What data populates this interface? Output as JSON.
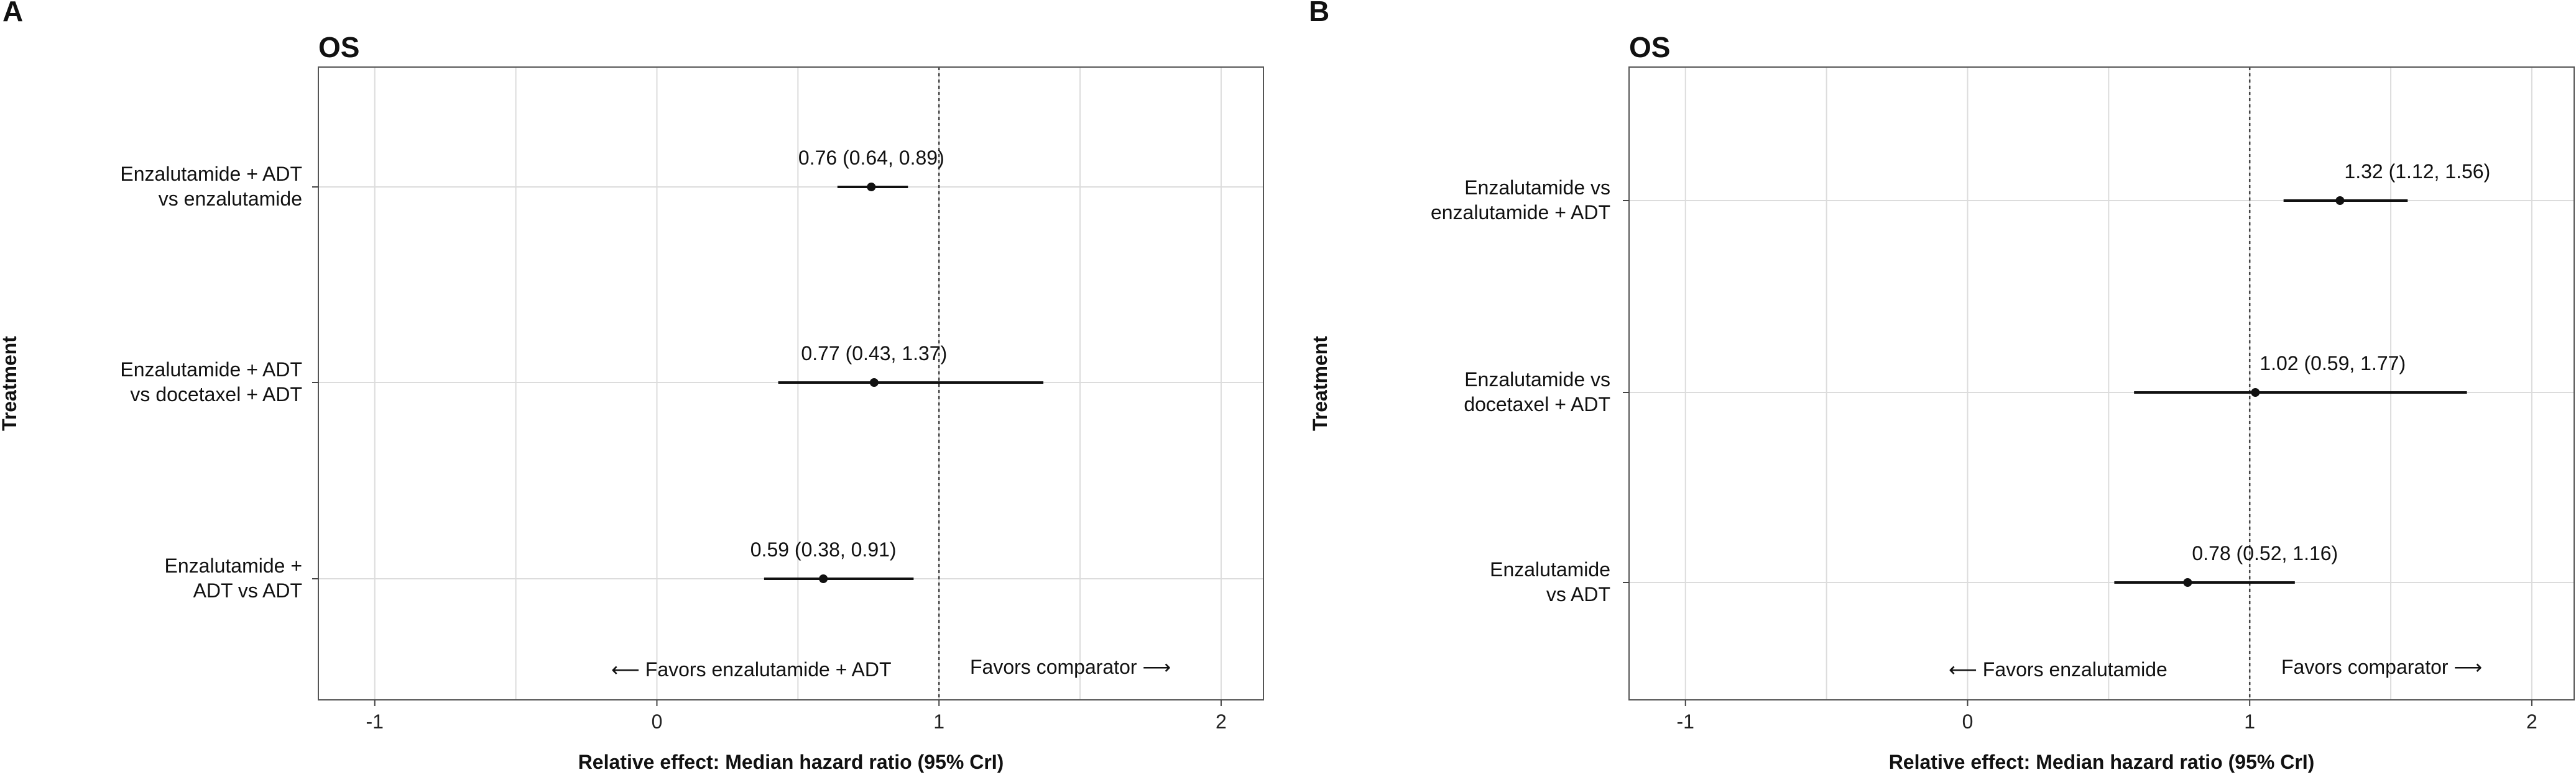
{
  "chart_data": [
    {
      "panel": "A",
      "type": "forest",
      "title": "OS",
      "ylabel": "Treatment",
      "xlabel": "Relative effect: Median hazard ratio (95% CrI)",
      "xlim": [
        -1.2,
        2.15
      ],
      "xticks": [
        -1,
        0,
        1,
        2
      ],
      "reference_line": 1,
      "favor_left": "⟵ Favors enzalutamide + ADT",
      "favor_right": "Favors comparator ⟶",
      "rows": [
        {
          "label": [
            "Enzalutamide + ADT",
            "vs enzalutamide"
          ],
          "estimate": 0.76,
          "lower": 0.64,
          "upper": 0.89,
          "text": "0.76 (0.64, 0.89)"
        },
        {
          "label": [
            "Enzalutamide + ADT",
            "vs docetaxel + ADT"
          ],
          "estimate": 0.77,
          "lower": 0.43,
          "upper": 1.37,
          "text": "0.77 (0.43, 1.37)"
        },
        {
          "label": [
            "Enzalutamide +",
            "ADT vs ADT"
          ],
          "estimate": 0.59,
          "lower": 0.38,
          "upper": 0.91,
          "text": "0.59 (0.38, 0.91)"
        }
      ]
    },
    {
      "panel": "B",
      "type": "forest",
      "title": "OS",
      "ylabel": "Treatment",
      "xlabel": "Relative effect: Median hazard ratio (95% CrI)",
      "xlim": [
        -1.2,
        2.15
      ],
      "xticks": [
        -1,
        0,
        1,
        2
      ],
      "reference_line": 1,
      "favor_left": "⟵ Favors enzalutamide",
      "favor_right": "Favors comparator ⟶",
      "rows": [
        {
          "label": [
            "Enzalutamide vs",
            "enzalutamide + ADT"
          ],
          "estimate": 1.32,
          "lower": 1.12,
          "upper": 1.56,
          "text": "1.32 (1.12, 1.56)"
        },
        {
          "label": [
            "Enzalutamide vs",
            "docetaxel + ADT"
          ],
          "estimate": 1.02,
          "lower": 0.59,
          "upper": 1.77,
          "text": "1.02 (0.59, 1.77)"
        },
        {
          "label": [
            "Enzalutamide",
            "vs ADT"
          ],
          "estimate": 0.78,
          "lower": 0.52,
          "upper": 1.16,
          "text": "0.78 (0.52, 1.16)"
        }
      ]
    }
  ]
}
